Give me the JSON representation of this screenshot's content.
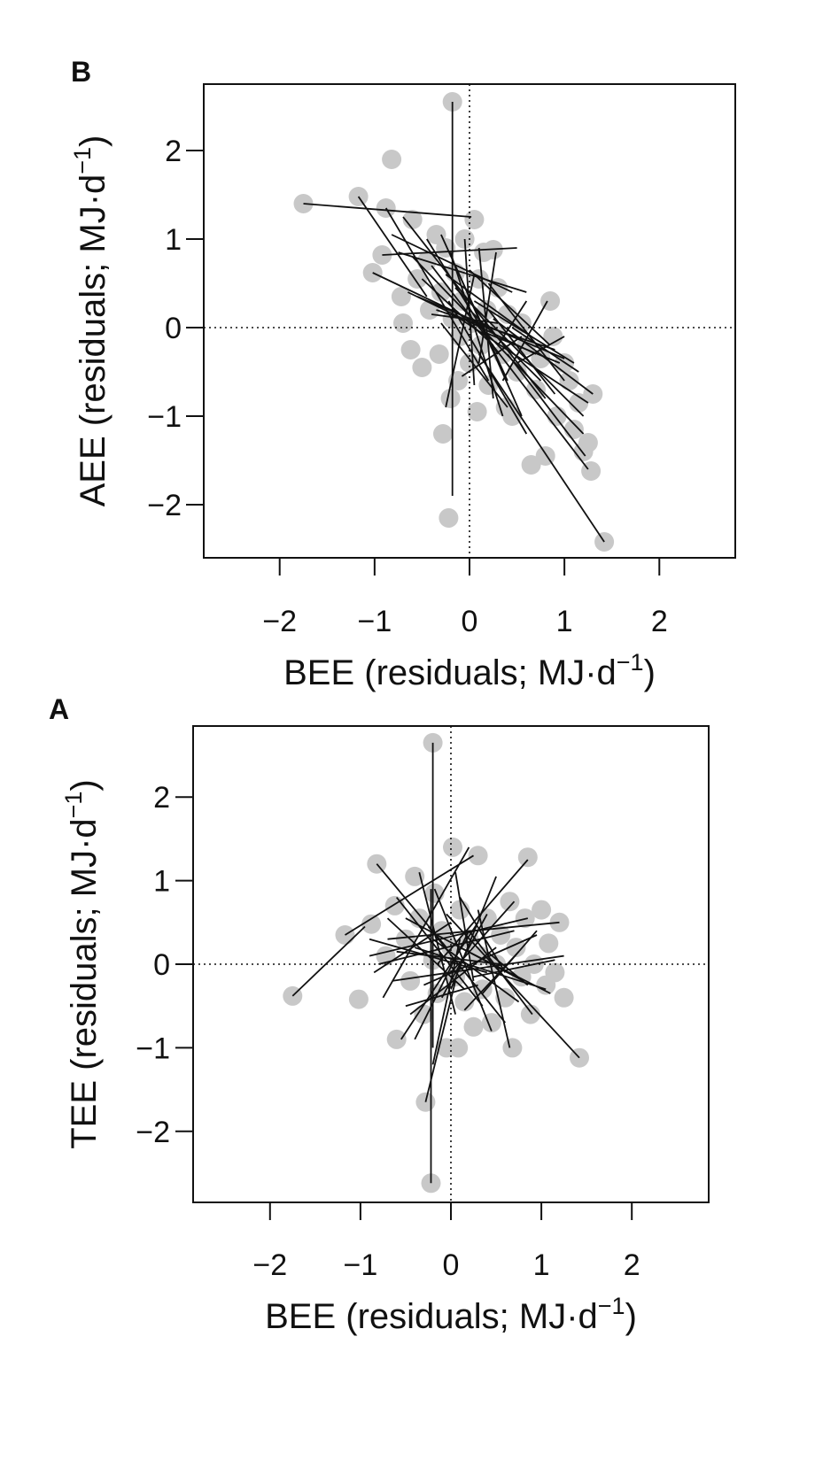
{
  "chart_data": [
    {
      "panel": "B",
      "type": "scatter",
      "xlabel": "BEE (residuals; MJ·d",
      "xlabel_sup": "−1",
      "xlabel_end": ")",
      "ylabel": "AEE (residuals; MJ·d",
      "ylabel_sup": "−1",
      "ylabel_end": ")",
      "xlim": [
        -2.8,
        2.8
      ],
      "ylim": [
        -2.6,
        2.75
      ],
      "xticks": [
        -2,
        -1,
        0,
        1,
        2
      ],
      "xtick_labels": [
        "−2",
        "−1",
        "0",
        "1",
        "2"
      ],
      "yticks": [
        -2,
        -1,
        0,
        1,
        2
      ],
      "ytick_labels": [
        "−2",
        "−1",
        "0",
        "1",
        "2"
      ],
      "reference_lines": {
        "x": 0,
        "y": 0
      },
      "point_color": "#c8c8c8",
      "line_color": "#111111",
      "points": [
        [
          -1.75,
          1.4
        ],
        [
          -1.17,
          1.48
        ],
        [
          -1.02,
          0.62
        ],
        [
          -0.92,
          0.82
        ],
        [
          -0.88,
          1.35
        ],
        [
          -0.82,
          1.9
        ],
        [
          -0.72,
          0.35
        ],
        [
          -0.7,
          0.05
        ],
        [
          -0.62,
          -0.25
        ],
        [
          -0.6,
          1.22
        ],
        [
          -0.55,
          0.55
        ],
        [
          -0.5,
          -0.45
        ],
        [
          -0.45,
          0.75
        ],
        [
          -0.42,
          0.2
        ],
        [
          -0.35,
          1.05
        ],
        [
          -0.32,
          -0.3
        ],
        [
          -0.3,
          0.4
        ],
        [
          -0.28,
          -1.2
        ],
        [
          -0.25,
          0.9
        ],
        [
          -0.22,
          -2.15
        ],
        [
          -0.2,
          -0.8
        ],
        [
          -0.18,
          0.1
        ],
        [
          -0.18,
          2.55
        ],
        [
          -0.15,
          0.62
        ],
        [
          -0.12,
          -0.6
        ],
        [
          -0.1,
          -0.1
        ],
        [
          -0.08,
          0.3
        ],
        [
          -0.05,
          1.0
        ],
        [
          0.0,
          -0.4
        ],
        [
          0.02,
          0.05
        ],
        [
          0.05,
          1.22
        ],
        [
          0.08,
          -0.95
        ],
        [
          0.1,
          0.55
        ],
        [
          0.12,
          -0.2
        ],
        [
          0.15,
          0.85
        ],
        [
          0.18,
          0.2
        ],
        [
          0.2,
          -0.65
        ],
        [
          0.25,
          0.88
        ],
        [
          0.28,
          -0.05
        ],
        [
          0.3,
          0.45
        ],
        [
          0.35,
          -0.3
        ],
        [
          0.38,
          -0.9
        ],
        [
          0.4,
          0.15
        ],
        [
          0.45,
          -1.0
        ],
        [
          0.5,
          -0.5
        ],
        [
          0.55,
          0.05
        ],
        [
          0.6,
          -0.2
        ],
        [
          0.65,
          -1.55
        ],
        [
          0.7,
          -0.7
        ],
        [
          0.75,
          -0.35
        ],
        [
          0.8,
          -1.45
        ],
        [
          0.85,
          0.3
        ],
        [
          0.88,
          -0.1
        ],
        [
          0.92,
          -1.0
        ],
        [
          1.0,
          -0.4
        ],
        [
          1.05,
          -0.6
        ],
        [
          1.1,
          -1.15
        ],
        [
          1.15,
          -0.85
        ],
        [
          1.2,
          -1.4
        ],
        [
          1.25,
          -1.3
        ],
        [
          1.28,
          -1.62
        ],
        [
          1.3,
          -0.75
        ],
        [
          1.42,
          -2.42
        ]
      ],
      "segments": [
        [
          -1.75,
          1.4,
          0.02,
          1.25
        ],
        [
          -1.17,
          1.48,
          -0.45,
          0.35
        ],
        [
          -0.18,
          2.55,
          -0.18,
          -1.9
        ],
        [
          -0.88,
          1.35,
          0.2,
          -0.6
        ],
        [
          -0.92,
          0.82,
          0.5,
          0.9
        ],
        [
          -1.02,
          0.62,
          0.1,
          0.05
        ],
        [
          -0.82,
          1.05,
          0.45,
          0.4
        ],
        [
          -0.7,
          1.25,
          0.8,
          -0.8
        ],
        [
          -0.6,
          0.8,
          1.2,
          -1.2
        ],
        [
          -0.55,
          0.35,
          1.0,
          -0.35
        ],
        [
          -0.45,
          1.0,
          0.3,
          -0.3
        ],
        [
          -0.4,
          0.7,
          1.25,
          -1.6
        ],
        [
          -0.35,
          0.2,
          0.9,
          -0.25
        ],
        [
          -0.3,
          1.05,
          0.4,
          -0.6
        ],
        [
          -0.25,
          0.6,
          0.65,
          -0.1
        ],
        [
          -0.22,
          0.3,
          0.6,
          -1.2
        ],
        [
          -0.2,
          0.85,
          0.35,
          -1.0
        ],
        [
          -0.15,
          0.45,
          1.2,
          -1.0
        ],
        [
          -0.1,
          0.1,
          1.25,
          -0.85
        ],
        [
          -0.05,
          1.0,
          0.05,
          -0.65
        ],
        [
          0.0,
          0.65,
          0.85,
          -0.2
        ],
        [
          0.05,
          0.3,
          1.1,
          -0.4
        ],
        [
          0.1,
          0.9,
          0.25,
          -0.8
        ],
        [
          0.15,
          -0.05,
          0.95,
          -0.4
        ],
        [
          0.2,
          0.5,
          1.0,
          -0.6
        ],
        [
          0.25,
          0.1,
          1.3,
          -0.75
        ],
        [
          0.28,
          0.85,
          0.1,
          -0.4
        ],
        [
          0.3,
          -0.2,
          0.6,
          0.3
        ],
        [
          0.35,
          -0.6,
          0.82,
          0.3
        ],
        [
          -0.08,
          -0.55,
          0.55,
          -0.1
        ],
        [
          0.1,
          -0.3,
          1.42,
          -2.42
        ],
        [
          0.4,
          -0.3,
          1.22,
          -1.45
        ],
        [
          0.45,
          0.0,
          1.15,
          -0.5
        ],
        [
          0.2,
          0.2,
          0.9,
          -0.75
        ],
        [
          -0.3,
          0.05,
          0.4,
          -0.9
        ],
        [
          -0.5,
          0.55,
          0.25,
          -0.2
        ],
        [
          -0.65,
          0.4,
          0.7,
          -0.3
        ],
        [
          -0.15,
          0.7,
          0.55,
          -1.0
        ],
        [
          0.0,
          0.2,
          0.75,
          -0.6
        ],
        [
          -0.4,
          0.15,
          0.3,
          0.05
        ],
        [
          -0.25,
          -0.9,
          0.05,
          0.6
        ],
        [
          -0.75,
          0.85,
          0.6,
          0.4
        ],
        [
          0.5,
          -0.4,
          1.0,
          -0.1
        ]
      ]
    },
    {
      "panel": "A",
      "type": "scatter",
      "xlabel": "BEE (residuals; MJ·d",
      "xlabel_sup": "−1",
      "xlabel_end": ")",
      "ylabel": "TEE (residuals; MJ·d",
      "ylabel_sup": "−1",
      "ylabel_end": ")",
      "xlim": [
        -2.85,
        2.85
      ],
      "ylim": [
        -2.85,
        2.85
      ],
      "xticks": [
        -2,
        -1,
        0,
        1,
        2
      ],
      "xtick_labels": [
        "−2",
        "−1",
        "0",
        "1",
        "2"
      ],
      "yticks": [
        -2,
        -1,
        0,
        1,
        2
      ],
      "ytick_labels": [
        "−2",
        "−1",
        "0",
        "1",
        "2"
      ],
      "reference_lines": {
        "x": 0,
        "y": 0
      },
      "point_color": "#c8c8c8",
      "line_color": "#111111",
      "points": [
        [
          -1.75,
          -0.38
        ],
        [
          -1.17,
          0.35
        ],
        [
          -1.02,
          -0.42
        ],
        [
          -0.88,
          0.48
        ],
        [
          -0.82,
          1.2
        ],
        [
          -0.72,
          0.1
        ],
        [
          -0.62,
          0.7
        ],
        [
          -0.6,
          -0.9
        ],
        [
          -0.5,
          0.3
        ],
        [
          -0.45,
          -0.2
        ],
        [
          -0.4,
          1.05
        ],
        [
          -0.35,
          0.55
        ],
        [
          -0.3,
          -0.6
        ],
        [
          -0.28,
          -1.65
        ],
        [
          -0.22,
          -2.62
        ],
        [
          -0.2,
          0.05
        ],
        [
          -0.2,
          2.65
        ],
        [
          -0.18,
          0.85
        ],
        [
          -0.15,
          -0.35
        ],
        [
          -0.1,
          0.4
        ],
        [
          -0.05,
          -1.0
        ],
        [
          0.0,
          0.2
        ],
        [
          0.02,
          1.4
        ],
        [
          0.05,
          -0.15
        ],
        [
          0.08,
          -1.0
        ],
        [
          0.1,
          0.65
        ],
        [
          0.15,
          -0.45
        ],
        [
          0.2,
          0.3
        ],
        [
          0.25,
          -0.75
        ],
        [
          0.3,
          1.3
        ],
        [
          0.32,
          0.1
        ],
        [
          0.35,
          -0.3
        ],
        [
          0.4,
          0.55
        ],
        [
          0.45,
          -0.7
        ],
        [
          0.5,
          0.0
        ],
        [
          0.55,
          0.35
        ],
        [
          0.6,
          -0.4
        ],
        [
          0.65,
          0.75
        ],
        [
          0.68,
          -1.0
        ],
        [
          0.72,
          0.2
        ],
        [
          0.78,
          -0.15
        ],
        [
          0.82,
          0.55
        ],
        [
          0.85,
          1.28
        ],
        [
          0.88,
          -0.6
        ],
        [
          0.92,
          0.0
        ],
        [
          1.0,
          0.65
        ],
        [
          1.05,
          -0.25
        ],
        [
          1.08,
          0.25
        ],
        [
          1.15,
          -0.1
        ],
        [
          1.2,
          0.5
        ],
        [
          1.25,
          -0.4
        ],
        [
          1.42,
          -1.12
        ]
      ],
      "segments": [
        [
          -1.75,
          -0.38,
          -0.95,
          0.45
        ],
        [
          -0.2,
          2.65,
          -0.2,
          -1.0
        ],
        [
          -0.22,
          -2.62,
          -0.22,
          0.9
        ],
        [
          -0.82,
          1.2,
          -0.05,
          0.2
        ],
        [
          -1.17,
          0.35,
          0.25,
          1.3
        ],
        [
          -0.9,
          0.1,
          0.85,
          0.55
        ],
        [
          -0.8,
          0.0,
          0.7,
          0.4
        ],
        [
          -0.75,
          -0.4,
          0.2,
          1.4
        ],
        [
          -0.7,
          0.3,
          1.2,
          0.5
        ],
        [
          -0.65,
          -0.2,
          1.25,
          0.1
        ],
        [
          -0.6,
          0.8,
          0.35,
          -0.5
        ],
        [
          -0.55,
          -0.9,
          0.3,
          0.5
        ],
        [
          -0.5,
          0.55,
          0.8,
          -0.2
        ],
        [
          -0.45,
          -0.6,
          0.5,
          0.2
        ],
        [
          -0.4,
          0.2,
          1.05,
          -0.3
        ],
        [
          -0.35,
          1.1,
          0.05,
          -0.6
        ],
        [
          -0.3,
          -0.25,
          0.95,
          0.35
        ],
        [
          -0.25,
          0.45,
          0.6,
          -0.7
        ],
        [
          -0.2,
          -1.2,
          0.1,
          0.3
        ],
        [
          -0.18,
          0.9,
          0.45,
          -0.8
        ],
        [
          -0.15,
          0.0,
          0.85,
          1.25
        ],
        [
          -0.1,
          -0.4,
          0.4,
          0.6
        ],
        [
          -0.05,
          0.6,
          1.42,
          -1.12
        ],
        [
          0.0,
          -0.1,
          0.7,
          0.75
        ],
        [
          0.05,
          1.1,
          0.25,
          -0.2
        ],
        [
          0.1,
          0.2,
          1.1,
          -0.35
        ],
        [
          0.15,
          -0.55,
          0.75,
          0.15
        ],
        [
          0.2,
          0.4,
          0.9,
          -0.6
        ],
        [
          0.25,
          -0.15,
          1.15,
          0.05
        ],
        [
          0.3,
          0.65,
          0.65,
          -1.0
        ],
        [
          0.35,
          -0.35,
          0.95,
          0.4
        ],
        [
          0.4,
          0.15,
          0.85,
          -0.25
        ],
        [
          -0.85,
          -0.1,
          0.0,
          0.5
        ],
        [
          -0.7,
          0.55,
          0.15,
          -0.3
        ],
        [
          -0.28,
          -1.65,
          0.05,
          -0.2
        ],
        [
          -0.4,
          -0.9,
          0.2,
          0.4
        ],
        [
          0.0,
          -0.3,
          0.5,
          1.05
        ],
        [
          -0.6,
          0.15,
          0.55,
          0.0
        ],
        [
          -0.2,
          0.3,
          0.75,
          -0.45
        ],
        [
          0.1,
          0.8,
          0.6,
          -0.1
        ],
        [
          -0.5,
          -0.5,
          0.3,
          -0.25
        ],
        [
          -0.9,
          0.3,
          0.4,
          -0.1
        ]
      ]
    }
  ]
}
